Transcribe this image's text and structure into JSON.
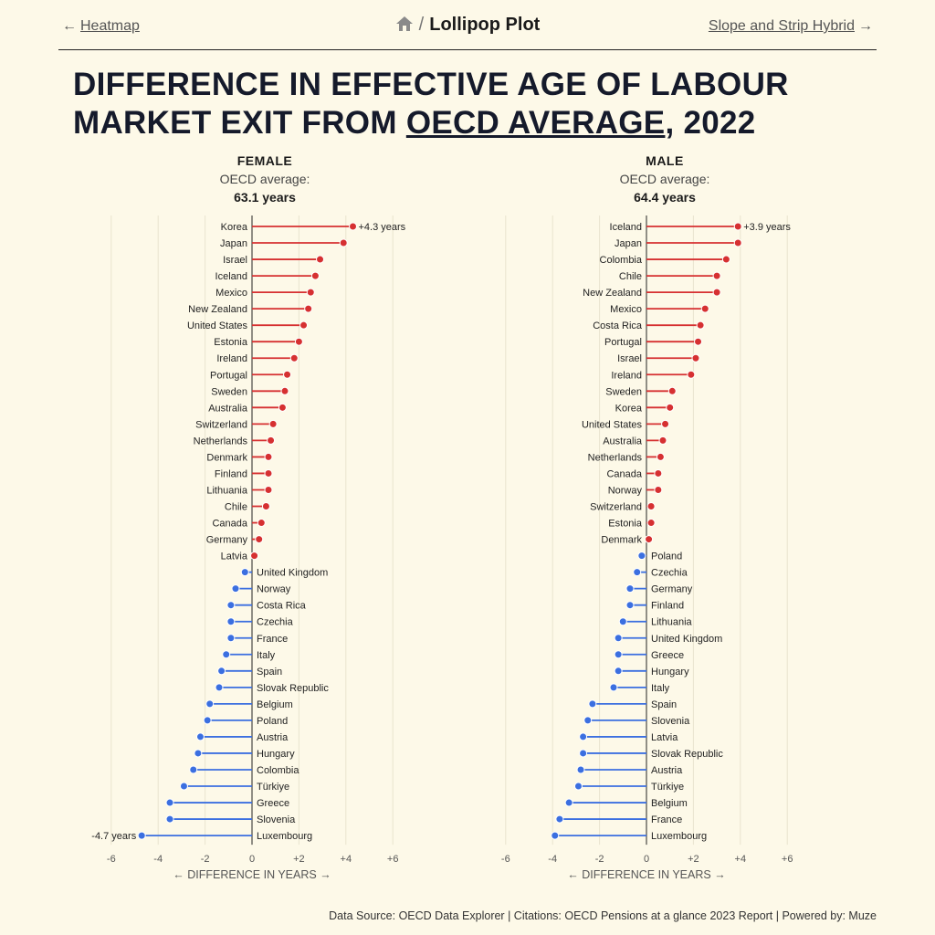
{
  "nav": {
    "prev_label": "Heatmap",
    "prev_arrow": "←",
    "title": "Lollipop Plot",
    "separator": "/",
    "next_label": "Slope and Strip Hybrid",
    "next_arrow": "→",
    "home_icon": "home-icon"
  },
  "title": {
    "before": "DIFFERENCE IN EFFECTIVE AGE OF LABOUR MARKET EXIT FROM ",
    "link": "OECD AVERAGE",
    "after": ", 2022"
  },
  "colors": {
    "positive": "#d63031",
    "negative": "#3b6fe0",
    "grid": "#e9e4cf",
    "axis": "#222222"
  },
  "source_text": "Data Source: OECD Data Explorer | Citations: OECD Pensions at a glance 2023 Report | Powered by: Muze",
  "chart_data": [
    {
      "type": "lollipop",
      "panel": "FEMALE",
      "avg_label": "OECD average:",
      "avg_value": "63.1 years",
      "xlabel": "← DIFFERENCE IN YEARS →",
      "xlim": [
        -6,
        6
      ],
      "xticks": [
        "-6",
        "-4",
        "-2",
        "0",
        "+2",
        "+4",
        "+6"
      ],
      "max_label": "+4.3 years",
      "min_label": "-4.7 years",
      "categories": [
        "Korea",
        "Japan",
        "Israel",
        "Iceland",
        "Mexico",
        "New Zealand",
        "United States",
        "Estonia",
        "Ireland",
        "Portugal",
        "Sweden",
        "Australia",
        "Switzerland",
        "Netherlands",
        "Denmark",
        "Finland",
        "Lithuania",
        "Chile",
        "Canada",
        "Germany",
        "Latvia",
        "United Kingdom",
        "Norway",
        "Costa Rica",
        "Czechia",
        "France",
        "Italy",
        "Spain",
        "Slovak Republic",
        "Belgium",
        "Poland",
        "Austria",
        "Hungary",
        "Colombia",
        "Türkiye",
        "Greece",
        "Slovenia",
        "Luxembourg"
      ],
      "values": [
        4.3,
        3.9,
        2.9,
        2.7,
        2.5,
        2.4,
        2.2,
        2.0,
        1.8,
        1.5,
        1.4,
        1.3,
        0.9,
        0.8,
        0.7,
        0.7,
        0.7,
        0.6,
        0.4,
        0.3,
        0.1,
        -0.3,
        -0.7,
        -0.9,
        -0.9,
        -0.9,
        -1.1,
        -1.3,
        -1.4,
        -1.8,
        -1.9,
        -2.2,
        -2.3,
        -2.5,
        -2.9,
        -3.5,
        -3.5,
        -4.7
      ]
    },
    {
      "type": "lollipop",
      "panel": "MALE",
      "avg_label": "OECD average:",
      "avg_value": "64.4 years",
      "xlabel": "← DIFFERENCE IN YEARS →",
      "xlim": [
        -6,
        6
      ],
      "xticks": [
        "-6",
        "-4",
        "-2",
        "0",
        "+2",
        "+4",
        "+6"
      ],
      "max_label": "+3.9 years",
      "min_label": "",
      "categories": [
        "Iceland",
        "Japan",
        "Colombia",
        "Chile",
        "New Zealand",
        "Mexico",
        "Costa Rica",
        "Portugal",
        "Israel",
        "Ireland",
        "Sweden",
        "Korea",
        "United States",
        "Australia",
        "Netherlands",
        "Canada",
        "Norway",
        "Switzerland",
        "Estonia",
        "Denmark",
        "Poland",
        "Czechia",
        "Germany",
        "Finland",
        "Lithuania",
        "United Kingdom",
        "Greece",
        "Hungary",
        "Italy",
        "Spain",
        "Slovenia",
        "Latvia",
        "Slovak Republic",
        "Austria",
        "Türkiye",
        "Belgium",
        "France",
        "Luxembourg"
      ],
      "values": [
        3.9,
        3.9,
        3.4,
        3.0,
        3.0,
        2.5,
        2.3,
        2.2,
        2.1,
        1.9,
        1.1,
        1.0,
        0.8,
        0.7,
        0.6,
        0.5,
        0.5,
        0.2,
        0.2,
        0.1,
        -0.2,
        -0.4,
        -0.7,
        -0.7,
        -1.0,
        -1.2,
        -1.2,
        -1.2,
        -1.4,
        -2.3,
        -2.5,
        -2.7,
        -2.7,
        -2.8,
        -2.9,
        -3.3,
        -3.7,
        -3.9
      ]
    }
  ]
}
